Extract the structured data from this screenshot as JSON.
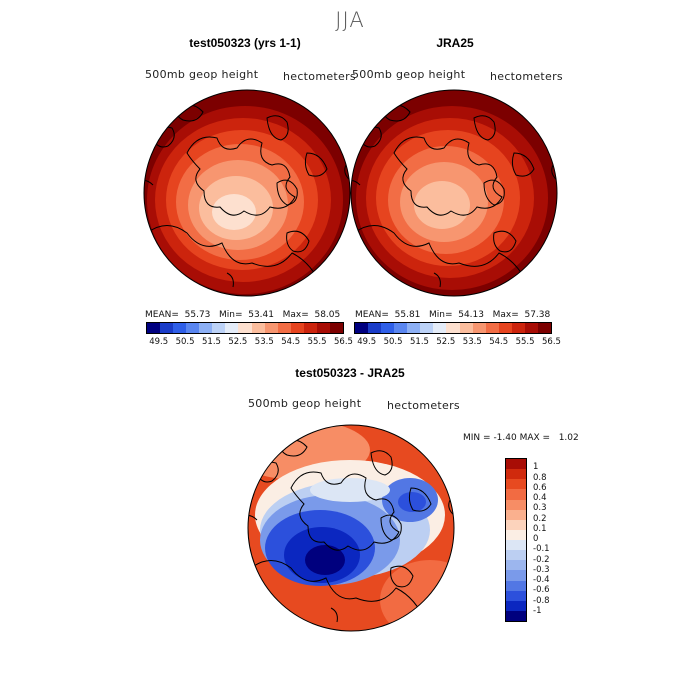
{
  "season": "JJA",
  "panels": [
    {
      "title": "test050323 (yrs 1-1)",
      "variable": "500mb geop height",
      "units": "hectometers",
      "stats": {
        "mean_label": "MEAN=",
        "mean": "55.73",
        "min_label": "Min=",
        "min": "53.41",
        "max_label": "Max=",
        "max": "58.05"
      }
    },
    {
      "title": "JRA25",
      "variable": "500mb geop height",
      "units": "hectometers",
      "stats": {
        "mean_label": "MEAN=",
        "mean": "55.81",
        "min_label": "Min=",
        "min": "54.13",
        "max_label": "Max=",
        "max": "57.38"
      }
    }
  ],
  "top_colorbar": {
    "tick_labels": [
      "49.5",
      "50.5",
      "51.5",
      "52.5",
      "53.5",
      "54.5",
      "55.5",
      "56.5"
    ],
    "colors": [
      "#000080",
      "#1a3cc8",
      "#2f5fe8",
      "#5a86f0",
      "#8db0f5",
      "#bcd2f7",
      "#e4ecf8",
      "#fde0cf",
      "#fbbd9d",
      "#f79670",
      "#f26d45",
      "#e6441f",
      "#cc240d",
      "#a80d05",
      "#7c0000"
    ]
  },
  "diff_panel": {
    "title": "test050323 - JRA25",
    "variable": "500mb geop height",
    "units": "hectometers",
    "stats": {
      "min_label": "MIN =",
      "min": "-1.40",
      "max_label": "MAX =",
      "max": "1.02"
    }
  },
  "diff_colorbar": {
    "levels": [
      "1",
      "0.8",
      "0.6",
      "0.4",
      "0.3",
      "0.2",
      "0.1",
      "0",
      "-0.1",
      "-0.2",
      "-0.3",
      "-0.4",
      "-0.6",
      "-0.8",
      "-1"
    ],
    "colors": [
      "#a80d05",
      "#d02a0d",
      "#e74a20",
      "#f26b42",
      "#f78d65",
      "#fab08e",
      "#fcd3bc",
      "#fbeee4",
      "#dce6f5",
      "#bccff2",
      "#9cb6ee",
      "#7a9aea",
      "#5277e4",
      "#2c50dc",
      "#0b27c0",
      "#00007e"
    ]
  },
  "map_colors": {
    "abs_levels": [
      "#7c0000",
      "#a80d05",
      "#cc240d",
      "#e6441f",
      "#f26d45",
      "#f79670",
      "#fbbd9d",
      "#fde0cf"
    ],
    "land_outline": "#000000"
  }
}
